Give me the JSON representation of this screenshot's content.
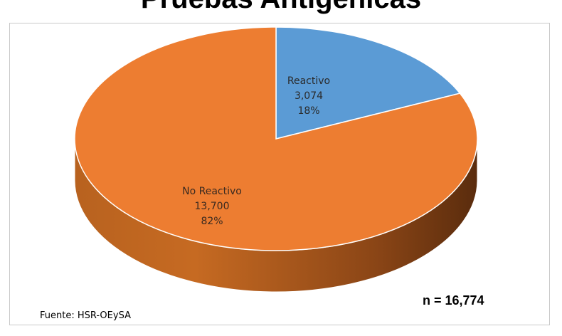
{
  "chart_data": {
    "type": "pie",
    "title": "Pruebas Antigénicas",
    "slices": [
      {
        "label": "Reactivo",
        "value": 3074,
        "value_text": "3,074",
        "percent_text": "18%",
        "color": "#5b9bd5"
      },
      {
        "label": "No Reactivo",
        "value": 13700,
        "value_text": "13,700",
        "percent_text": "82%",
        "color": "#ed7d31"
      }
    ],
    "total_text": "n = 16,774",
    "source_text": "Fuente: HSR-OEySA",
    "style": "3d-pie",
    "legend": "none"
  }
}
